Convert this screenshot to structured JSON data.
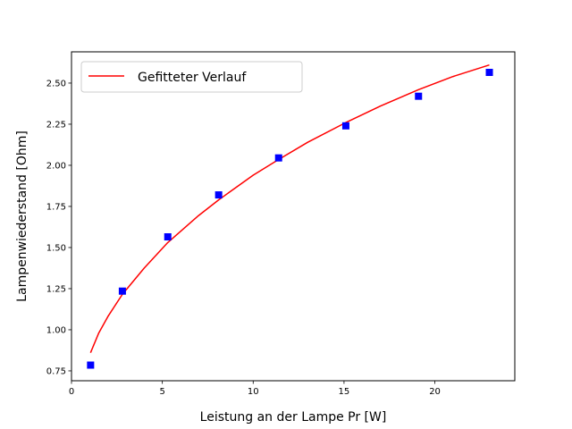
{
  "chart_data": {
    "type": "scatter",
    "title": "",
    "xlabel": "Leistung an der Lampe Pr [W]",
    "ylabel": "Lampenwiederstand [Ohm]",
    "xlim": [
      0,
      24.4
    ],
    "ylim": [
      0.69,
      2.69
    ],
    "xticks": [
      0,
      5,
      10,
      15,
      20
    ],
    "xtick_labels": [
      "0",
      "5",
      "10",
      "15",
      "20"
    ],
    "yticks": [
      0.75,
      1.0,
      1.25,
      1.5,
      1.75,
      2.0,
      2.25,
      2.5
    ],
    "ytick_labels": [
      "0.75",
      "1.00",
      "1.25",
      "1.50",
      "1.75",
      "2.00",
      "2.25",
      "2.50"
    ],
    "grid": false,
    "legend_position": "top-left",
    "series": [
      {
        "name": "",
        "kind": "scatter",
        "marker": "square",
        "color": "#0000ff",
        "x": [
          1.05,
          2.8,
          5.3,
          8.1,
          11.4,
          15.1,
          19.1,
          23.0
        ],
        "y": [
          0.785,
          1.235,
          1.565,
          1.82,
          2.045,
          2.24,
          2.42,
          2.565
        ]
      },
      {
        "name": "Gefitteter Verlauf",
        "kind": "line",
        "color": "#ff0000",
        "x": [
          1.05,
          1.5,
          2.0,
          2.8,
          4.0,
          5.3,
          7.0,
          8.1,
          10.0,
          11.4,
          13.0,
          15.1,
          17.0,
          19.1,
          21.0,
          23.0
        ],
        "y": [
          0.86,
          0.98,
          1.08,
          1.215,
          1.375,
          1.53,
          1.695,
          1.79,
          1.94,
          2.035,
          2.14,
          2.26,
          2.36,
          2.46,
          2.54,
          2.61
        ]
      }
    ]
  }
}
